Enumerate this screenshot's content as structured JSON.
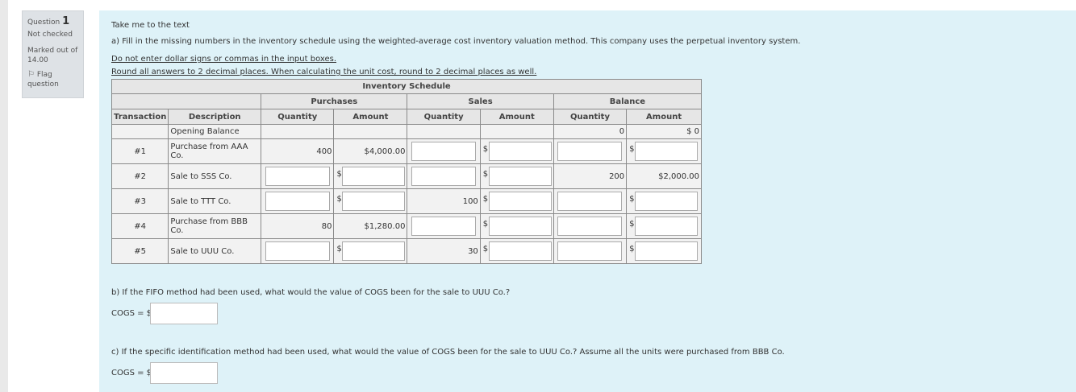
{
  "info": {
    "question_label": "Question",
    "question_number": "1",
    "state": "Not checked",
    "grade": "Marked out of 14.00",
    "flag_label": "Flag question"
  },
  "content": {
    "take_me": "Take me to the text",
    "part_a": "a) Fill in the missing numbers in the inventory schedule using the weighted-average cost inventory valuation method. This company uses the perpetual inventory system.",
    "note1": "Do not enter dollar signs or commas in the input boxes.",
    "note2": "Round all answers to 2 decimal places. When calculating the unit cost, round to 2 decimal places as well.",
    "part_b": "b) If the FIFO method had been used, what would the value of COGS been for the sale to UUU Co.?",
    "cogs_label": "COGS = $",
    "part_c": "c) If the specific identification method had been used, what would the value of COGS been for the sale to UUU Co.? Assume all the units were purchased from BBB Co."
  },
  "table": {
    "title": "Inventory Schedule",
    "groups": {
      "purchases": "Purchases",
      "sales": "Sales",
      "balance": "Balance"
    },
    "headers": {
      "transaction": "Transaction",
      "description": "Description",
      "quantity": "Quantity",
      "amount": "Amount"
    },
    "dollar": "$",
    "opening": {
      "description": "Opening Balance",
      "bal_qty": "0",
      "bal_amt": "$ 0"
    },
    "rows": [
      {
        "txn": "#1",
        "desc": "Purchase from AAA Co.",
        "p_qty": "400",
        "p_amt": "$4,000.00"
      },
      {
        "txn": "#2",
        "desc": "Sale to SSS Co.",
        "b_qty": "200",
        "b_amt": "$2,000.00"
      },
      {
        "txn": "#3",
        "desc": "Sale to TTT Co.",
        "s_qty": "100"
      },
      {
        "txn": "#4",
        "desc": "Purchase from BBB Co.",
        "p_qty": "80",
        "p_amt": "$1,280.00"
      },
      {
        "txn": "#5",
        "desc": "Sale to UUU Co.",
        "s_qty": "30"
      }
    ]
  }
}
